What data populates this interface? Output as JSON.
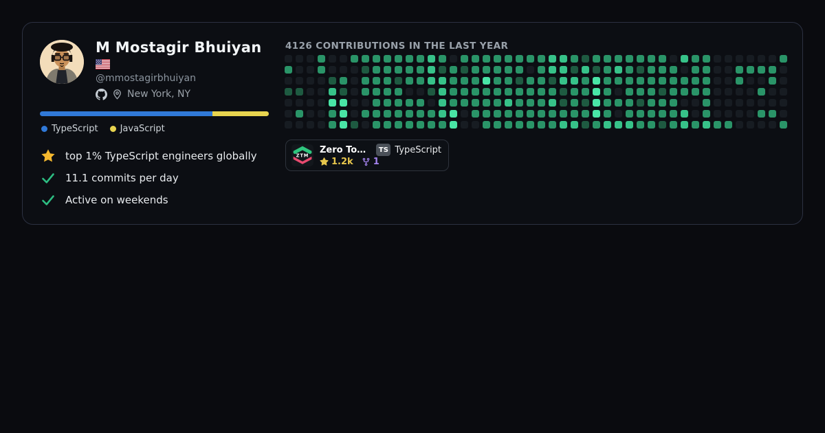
{
  "profile": {
    "name": "M Mostagir Bhuiyan",
    "country_flag": "US",
    "handle": "@mmostagirbhuiyan",
    "location": "New York, NY"
  },
  "languages": {
    "items": [
      {
        "label": "TypeScript",
        "color": "#3079d8",
        "percent": 75.3
      },
      {
        "label": "JavaScript",
        "color": "#e8d44f",
        "percent": 24.7
      }
    ]
  },
  "highlights": [
    {
      "icon": "star",
      "text": "top 1% TypeScript engineers globally"
    },
    {
      "icon": "check",
      "text": "11.1 commits per day"
    },
    {
      "icon": "check",
      "text": "Active on weekends"
    }
  ],
  "contributions": {
    "title": "4126 CONTRIBUTIONS IN THE LAST YEAR",
    "total": 4126,
    "type": "heatmap",
    "columns": 46,
    "rows": 7,
    "level_colors": [
      "#171c22",
      "#1e5a41",
      "#2a9468",
      "#37c289",
      "#49e5a6"
    ],
    "grid_rows": [
      "0002002222222320222222223321222222203220000002",
      "2002000122222312122222023313123212220220022220",
      "0000120222122332224221221332422222222220020020",
      "1100310222200132222222222122420222122220000200",
      "0000440022222032222232223121422212220020000000",
      "0200240222222234022222222222420222223020000220",
      "0000241022222224002222222331233322123232200002"
    ]
  },
  "repo": {
    "logo": "ztm-logo",
    "name": "Zero To…",
    "stars": "1.2k",
    "forks": "1",
    "language_badge": "TS",
    "language": "TypeScript",
    "star_color": "#e7c64c",
    "fork_color": "#a584f0"
  }
}
